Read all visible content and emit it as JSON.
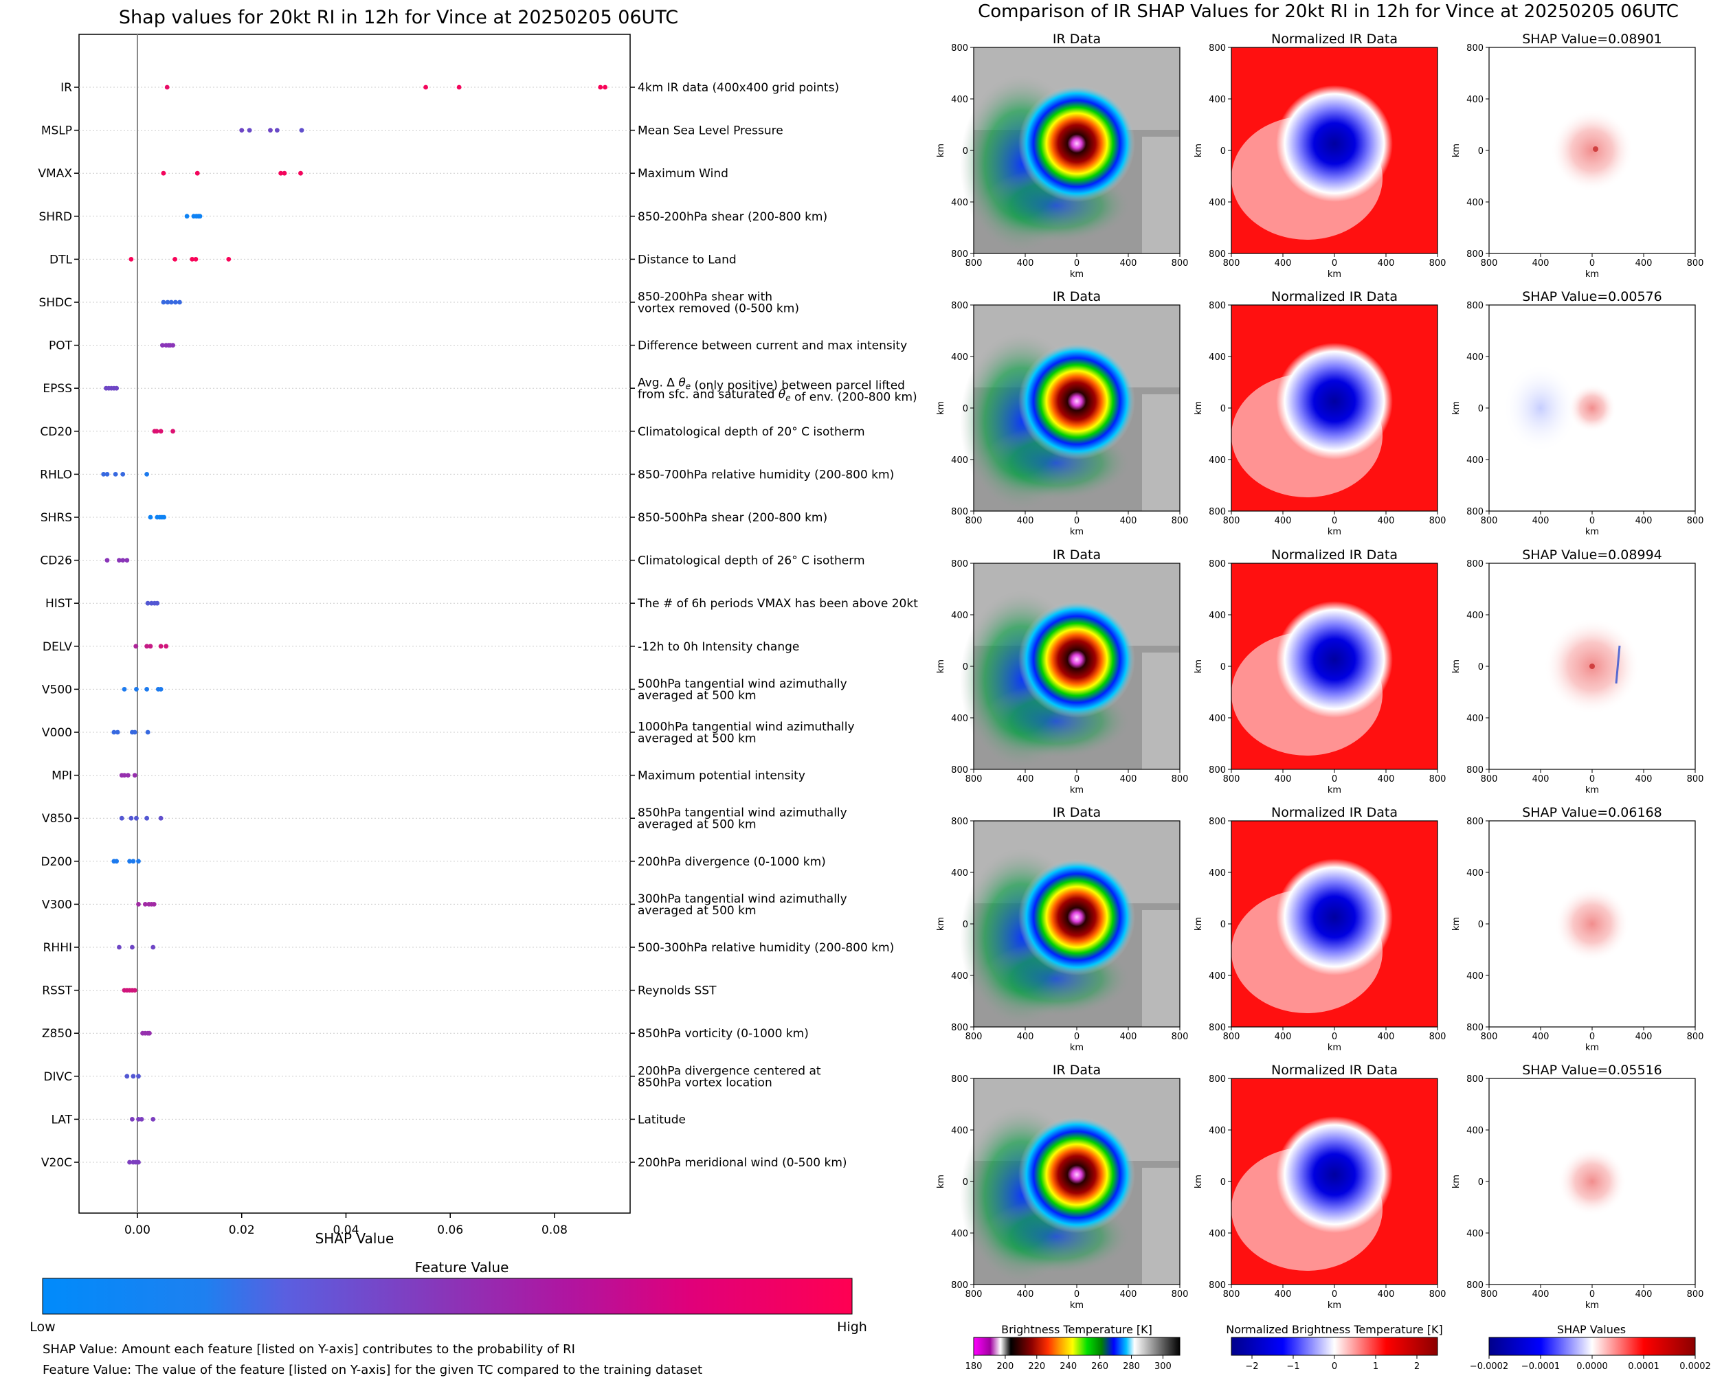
{
  "left_chart": {
    "title": "Shap values for 20kt RI in 12h for Vince at 20250205 06UTC",
    "xlabel": "SHAP Value",
    "xticks": [
      "0.00",
      "0.02",
      "0.04",
      "0.06",
      "0.08"
    ],
    "colorbar_title": "Feature Value",
    "colorbar_low": "Low",
    "colorbar_high": "High",
    "note1": "SHAP Value: Amount each feature [listed on Y-axis] contributes to the probability of RI",
    "note2": "Feature Value: The value of the feature [listed on Y-axis] for the given TC compared to the training dataset"
  },
  "right_panel": {
    "title": "Comparison of IR SHAP Values for 20kt RI in 12h for Vince at 20250205 06UTC",
    "col_title_ir": "IR Data",
    "col_title_norm": "Normalized IR Data",
    "shap_prefix": "SHAP Value=",
    "shap_values": [
      "0.08901",
      "0.00576",
      "0.08994",
      "0.06168",
      "0.05516"
    ],
    "axis_label": "km",
    "ticks": [
      "800",
      "400",
      "0",
      "400",
      "800"
    ],
    "cbar1_title": "Brightness Temperature [K]",
    "cbar1_ticks": [
      "180",
      "200",
      "220",
      "240",
      "260",
      "280",
      "300"
    ],
    "cbar2_title": "Normalized Brightness Temperature [K]",
    "cbar2_ticks": [
      "−2",
      "−1",
      "0",
      "1",
      "2"
    ],
    "cbar3_title": "SHAP Values",
    "cbar3_ticks": [
      "−0.0002",
      "−0.0001",
      "0.0000",
      "0.0001",
      "0.0002"
    ]
  },
  "colors": {
    "low": "#008bfb",
    "mid": "#7a3dcc",
    "high": "#ff0052"
  },
  "chart_data": {
    "type": "scatter",
    "title": "Shap values for 20kt RI in 12h for Vince at 20250205 06UTC",
    "xlabel": "SHAP Value",
    "xlim": [
      -0.0112,
      0.0945
    ],
    "legend": "colorbar-bottom",
    "features": [
      {
        "name": "IR",
        "desc": [
          "4km IR data (400x400 grid points)"
        ],
        "points": [
          [
            0.0057,
            0.9
          ],
          [
            0.0553,
            0.95
          ],
          [
            0.0617,
            0.95
          ],
          [
            0.0888,
            0.97
          ],
          [
            0.0897,
            0.97
          ]
        ]
      },
      {
        "name": "MSLP",
        "desc": [
          "Mean Sea Level Pressure"
        ],
        "points": [
          [
            0.02,
            0.4
          ],
          [
            0.0215,
            0.38
          ],
          [
            0.0255,
            0.4
          ],
          [
            0.0268,
            0.38
          ],
          [
            0.0315,
            0.35
          ]
        ]
      },
      {
        "name": "VMAX",
        "desc": [
          "Maximum Wind"
        ],
        "points": [
          [
            0.005,
            0.95
          ],
          [
            0.0115,
            0.95
          ],
          [
            0.0275,
            0.95
          ],
          [
            0.0282,
            0.95
          ],
          [
            0.0313,
            0.95
          ]
        ]
      },
      {
        "name": "SHRD",
        "desc": [
          "850-200hPa shear (200-800 km)"
        ],
        "points": [
          [
            0.0095,
            0.05
          ],
          [
            0.0108,
            0.05
          ],
          [
            0.0113,
            0.05
          ],
          [
            0.0117,
            0.05
          ],
          [
            0.012,
            0.05
          ]
        ]
      },
      {
        "name": "DTL",
        "desc": [
          "Distance to Land"
        ],
        "points": [
          [
            -0.0012,
            0.97
          ],
          [
            0.0072,
            0.97
          ],
          [
            0.0105,
            0.97
          ],
          [
            0.0112,
            0.97
          ],
          [
            0.0175,
            0.97
          ]
        ]
      },
      {
        "name": "SHDC",
        "desc": [
          "850-200hPa shear with",
          "vortex removed (0-500 km)"
        ],
        "points": [
          [
            0.005,
            0.2
          ],
          [
            0.0058,
            0.2
          ],
          [
            0.0065,
            0.2
          ],
          [
            0.0073,
            0.2
          ],
          [
            0.0081,
            0.2
          ]
        ]
      },
      {
        "name": "POT",
        "desc": [
          "Difference between current and max intensity"
        ],
        "points": [
          [
            0.0048,
            0.5
          ],
          [
            0.0055,
            0.5
          ],
          [
            0.006,
            0.5
          ],
          [
            0.0063,
            0.5
          ],
          [
            0.0068,
            0.5
          ]
        ]
      },
      {
        "name": "EPSS",
        "desc": [
          "Avg. Δ θe (only positive) between parcel lifted",
          "from sfc. and saturated θe of env. (200-800 km)"
        ],
        "points": [
          [
            -0.006,
            0.4
          ],
          [
            -0.0055,
            0.4
          ],
          [
            -0.005,
            0.4
          ],
          [
            -0.0045,
            0.4
          ],
          [
            -0.004,
            0.4
          ]
        ]
      },
      {
        "name": "CD20",
        "desc": [
          "Climatological depth of 20° C isotherm"
        ],
        "points": [
          [
            0.0033,
            0.85
          ],
          [
            0.0037,
            0.85
          ],
          [
            0.0045,
            0.85
          ],
          [
            0.0068,
            0.85
          ]
        ]
      },
      {
        "name": "RHLO",
        "desc": [
          "850-700hPa relative humidity (200-800 km)"
        ],
        "points": [
          [
            -0.0065,
            0.2
          ],
          [
            -0.0058,
            0.2
          ],
          [
            -0.0042,
            0.2
          ],
          [
            -0.0028,
            0.2
          ],
          [
            0.0018,
            0.1
          ]
        ]
      },
      {
        "name": "SHRS",
        "desc": [
          "850-500hPa shear (200-800 km)"
        ],
        "points": [
          [
            0.0025,
            0.05
          ],
          [
            0.0038,
            0.05
          ],
          [
            0.0043,
            0.05
          ],
          [
            0.0047,
            0.05
          ],
          [
            0.0051,
            0.05
          ]
        ]
      },
      {
        "name": "CD26",
        "desc": [
          "Climatological depth of 26° C isotherm"
        ],
        "points": [
          [
            -0.0058,
            0.5
          ],
          [
            -0.0035,
            0.5
          ],
          [
            -0.0028,
            0.5
          ],
          [
            -0.002,
            0.5
          ]
        ]
      },
      {
        "name": "HIST",
        "desc": [
          "The # of 6h periods VMAX has been above 20kt"
        ],
        "points": [
          [
            0.002,
            0.3
          ],
          [
            0.0027,
            0.3
          ],
          [
            0.0033,
            0.3
          ],
          [
            0.0038,
            0.3
          ]
        ]
      },
      {
        "name": "DELV",
        "desc": [
          "-12h to 0h Intensity change"
        ],
        "points": [
          [
            -0.0003,
            0.65
          ],
          [
            0.0018,
            0.75
          ],
          [
            0.0025,
            0.75
          ],
          [
            0.0045,
            0.8
          ],
          [
            0.0055,
            0.8
          ]
        ]
      },
      {
        "name": "V500",
        "desc": [
          "500hPa tangential wind azimuthally",
          "averaged at 500 km"
        ],
        "points": [
          [
            -0.0025,
            0.1
          ],
          [
            -0.0002,
            0.1
          ],
          [
            0.0018,
            0.1
          ],
          [
            0.004,
            0.1
          ],
          [
            0.0045,
            0.1
          ]
        ]
      },
      {
        "name": "V000",
        "desc": [
          "1000hPa tangential wind azimuthally",
          "averaged at 500 km"
        ],
        "points": [
          [
            -0.0045,
            0.2
          ],
          [
            -0.0038,
            0.2
          ],
          [
            -0.001,
            0.2
          ],
          [
            -0.0005,
            0.2
          ],
          [
            0.002,
            0.2
          ]
        ]
      },
      {
        "name": "MPI",
        "desc": [
          "Maximum potential intensity"
        ],
        "points": [
          [
            -0.003,
            0.55
          ],
          [
            -0.0025,
            0.55
          ],
          [
            -0.0018,
            0.55
          ],
          [
            -0.0005,
            0.55
          ]
        ]
      },
      {
        "name": "V850",
        "desc": [
          "850hPa tangential wind azimuthally",
          "averaged at 500 km"
        ],
        "points": [
          [
            -0.003,
            0.3
          ],
          [
            -0.0012,
            0.3
          ],
          [
            -0.0002,
            0.3
          ],
          [
            0.0018,
            0.3
          ],
          [
            0.0045,
            0.35
          ]
        ]
      },
      {
        "name": "D200",
        "desc": [
          "200hPa divergence (0-1000 km)"
        ],
        "points": [
          [
            -0.0045,
            0.1
          ],
          [
            -0.004,
            0.1
          ],
          [
            -0.0015,
            0.1
          ],
          [
            -0.0008,
            0.1
          ],
          [
            0.0002,
            0.1
          ]
        ]
      },
      {
        "name": "V300",
        "desc": [
          "300hPa tangential wind azimuthally",
          "averaged at 500 km"
        ],
        "points": [
          [
            0.0002,
            0.6
          ],
          [
            0.0015,
            0.6
          ],
          [
            0.0022,
            0.6
          ],
          [
            0.0027,
            0.6
          ],
          [
            0.0032,
            0.6
          ]
        ]
      },
      {
        "name": "RHHI",
        "desc": [
          "500-300hPa relative humidity (200-800 km)"
        ],
        "points": [
          [
            -0.0035,
            0.4
          ],
          [
            -0.001,
            0.4
          ],
          [
            0.003,
            0.4
          ]
        ]
      },
      {
        "name": "RSST",
        "desc": [
          "Reynolds SST"
        ],
        "points": [
          [
            -0.0025,
            0.8
          ],
          [
            -0.002,
            0.8
          ],
          [
            -0.0015,
            0.8
          ],
          [
            -0.001,
            0.8
          ],
          [
            -0.0005,
            0.8
          ]
        ]
      },
      {
        "name": "Z850",
        "desc": [
          "850hPa vorticity (0-1000 km)"
        ],
        "points": [
          [
            0.001,
            0.55
          ],
          [
            0.0015,
            0.55
          ],
          [
            0.002,
            0.55
          ],
          [
            0.0023,
            0.55
          ]
        ]
      },
      {
        "name": "DIVC",
        "desc": [
          "200hPa divergence centered at",
          "850hPa vortex location"
        ],
        "points": [
          [
            -0.002,
            0.3
          ],
          [
            -0.0008,
            0.3
          ],
          [
            0.0002,
            0.3
          ]
        ]
      },
      {
        "name": "LAT",
        "desc": [
          "Latitude"
        ],
        "points": [
          [
            -0.001,
            0.45
          ],
          [
            0.0002,
            0.45
          ],
          [
            0.0008,
            0.45
          ],
          [
            0.003,
            0.45
          ]
        ]
      },
      {
        "name": "V20C",
        "desc": [
          "200hPa meridional wind (0-500 km)"
        ],
        "points": [
          [
            -0.0015,
            0.45
          ],
          [
            -0.0008,
            0.45
          ],
          [
            -0.0003,
            0.45
          ],
          [
            0.0002,
            0.45
          ]
        ]
      }
    ]
  }
}
